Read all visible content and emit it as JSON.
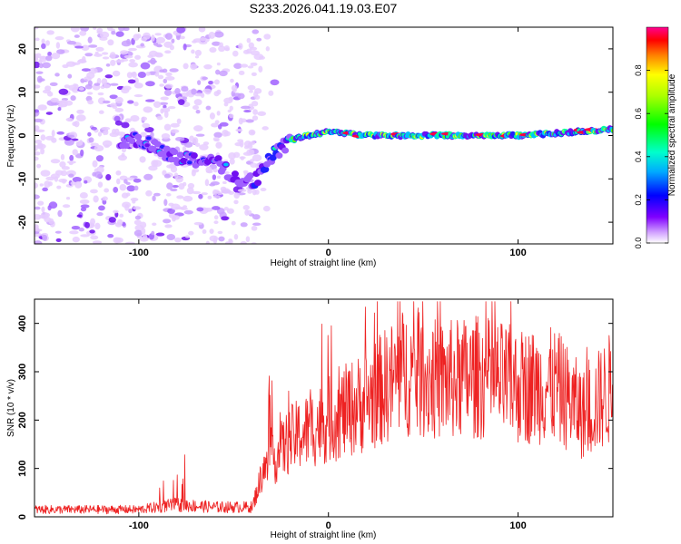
{
  "title": "S233.2026.041.19.03.E07",
  "chart_data": [
    {
      "type": "heatmap",
      "name": "spectrogram",
      "xlabel": "Height of straight line (km)",
      "ylabel": "Frequency (Hz)",
      "xlim": [
        -155,
        150
      ],
      "ylim": [
        -25,
        25
      ],
      "xticks": [
        -100,
        0,
        100
      ],
      "xtick_labels": [
        "-100",
        "0",
        "100"
      ],
      "yticks": [
        -20,
        -10,
        0,
        10,
        20
      ],
      "ytick_labels": [
        "-20",
        "-10",
        "0",
        "10",
        "20"
      ],
      "colorbar": {
        "label": "Normalized spectral amplitude",
        "range": [
          0,
          1
        ],
        "ticks": [
          0.0,
          0.2,
          0.4,
          0.6,
          0.8
        ],
        "tick_labels": [
          "0.0",
          "0.2",
          "0.4",
          "0.6",
          "0.8"
        ],
        "colormap": [
          "#ffffff",
          "#a050ff",
          "#0000ff",
          "#00ffff",
          "#00ff00",
          "#ffff00",
          "#ff0000",
          "#ff00a0"
        ]
      },
      "ridge": {
        "description_points_x": [
          -100,
          -80,
          -60,
          -45,
          -38,
          -30,
          -20,
          0,
          20,
          50,
          80,
          100,
          120,
          150
        ],
        "description_points_y": [
          -1,
          -5,
          -6,
          -11,
          -10,
          -5,
          -1,
          1,
          0,
          0,
          0,
          0,
          0.5,
          1.5
        ]
      }
    },
    {
      "type": "line",
      "name": "snr",
      "xlabel": "Height of straight line (km)",
      "ylabel": "SNR (10 * v/v)",
      "xlim": [
        -155,
        150
      ],
      "ylim": [
        0,
        450
      ],
      "xticks": [
        -100,
        0,
        100
      ],
      "xtick_labels": [
        "-100",
        "0",
        "100"
      ],
      "yticks": [
        0,
        100,
        200,
        300,
        400
      ],
      "ytick_labels": [
        "0",
        "100",
        "200",
        "300",
        "400"
      ],
      "color": "#ee2222",
      "trend_x": [
        -155,
        -100,
        -80,
        -60,
        -40,
        -35,
        -20,
        0,
        20,
        40,
        60,
        80,
        100,
        120,
        135,
        150
      ],
      "trend_y": [
        15,
        15,
        25,
        20,
        20,
        90,
        160,
        200,
        240,
        300,
        280,
        290,
        270,
        270,
        210,
        270
      ]
    }
  ]
}
